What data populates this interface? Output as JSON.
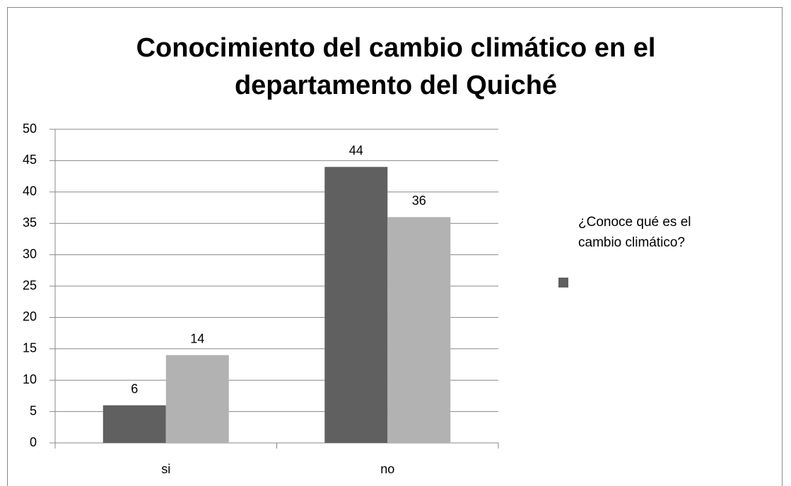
{
  "chart_data": {
    "type": "bar",
    "title": "Conocimiento del cambio climático en el departamento del Quiché",
    "categories": [
      "si",
      "no"
    ],
    "series": [
      {
        "name": "¿Conoce qué es el cambio climático?",
        "color": "#606060",
        "values": [
          6,
          44
        ]
      },
      {
        "color": "#b2b2b2",
        "values": [
          14,
          36
        ]
      }
    ],
    "ylim": [
      0,
      50
    ],
    "yticks": [
      0,
      5,
      10,
      15,
      20,
      25,
      30,
      35,
      40,
      45,
      50
    ],
    "grid": true,
    "legend": "right"
  }
}
